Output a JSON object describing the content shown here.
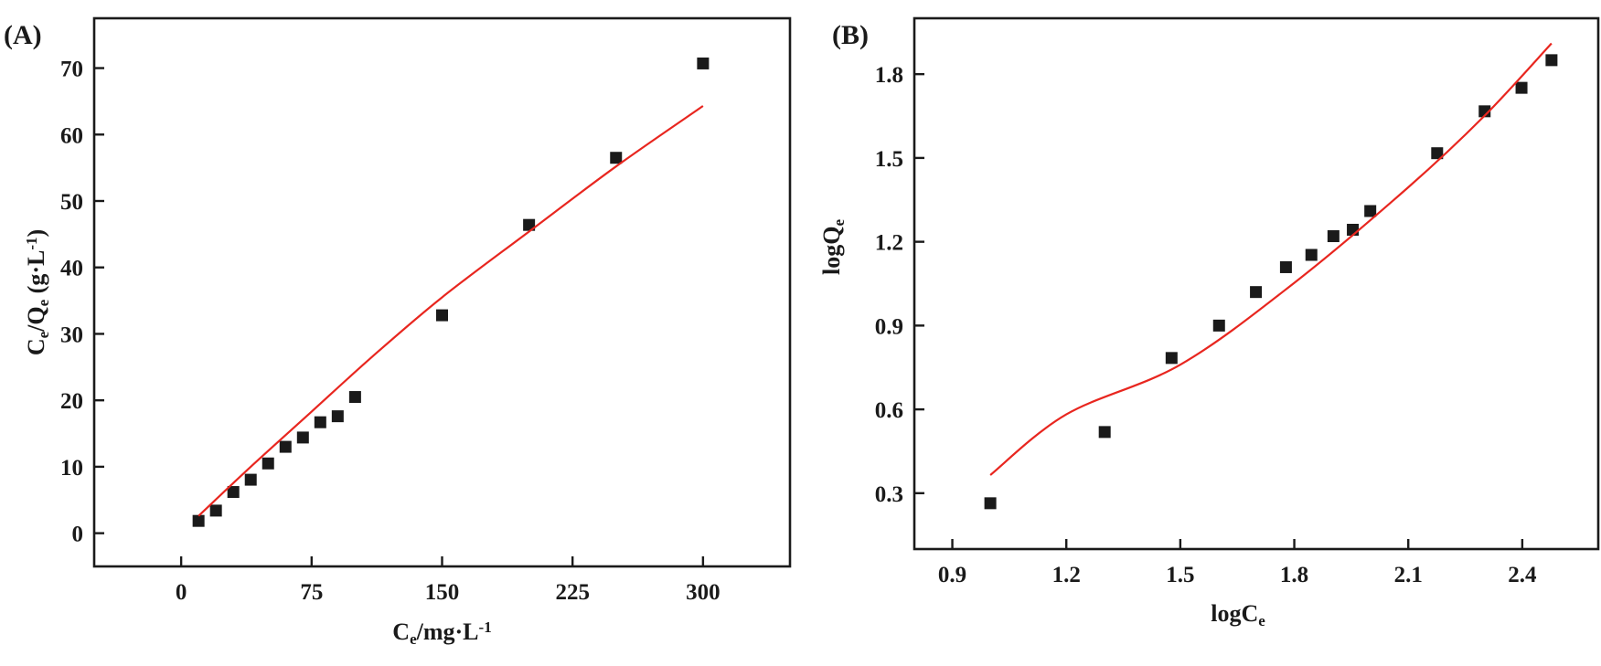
{
  "chart_data": [
    {
      "type": "scatter",
      "panel_label": "(A)",
      "xlabel_parts": [
        {
          "t": "C"
        },
        {
          "t": "e",
          "sub": true
        },
        {
          "t": "/mg·L"
        },
        {
          "t": "-1",
          "sup": true
        }
      ],
      "ylabel_parts": [
        {
          "t": "C"
        },
        {
          "t": "e",
          "sub": true
        },
        {
          "t": "/Q"
        },
        {
          "t": "e",
          "sub": true
        },
        {
          "t": "  (g·L"
        },
        {
          "t": "-1",
          "sup": true
        },
        {
          "t": ")"
        }
      ],
      "xlim": [
        -50,
        350
      ],
      "ylim": [
        -5,
        77.5
      ],
      "xticks": [
        0,
        75,
        150,
        225,
        300
      ],
      "yticks": [
        0,
        10,
        20,
        30,
        40,
        50,
        60,
        70
      ],
      "tick_labels_x": [
        "0",
        "75",
        "150",
        "225",
        "300"
      ],
      "tick_labels_y": [
        "0",
        "10",
        "20",
        "30",
        "40",
        "50",
        "60",
        "70"
      ],
      "grid": false,
      "series": [
        {
          "name": "experimental",
          "kind": "markers",
          "color": "#1a1a1a",
          "x": [
            10,
            20,
            30,
            40,
            50,
            60,
            70,
            80,
            90,
            100,
            150,
            200,
            250,
            300
          ],
          "y": [
            1.85,
            3.4,
            6.2,
            8.05,
            10.5,
            13.0,
            14.4,
            16.7,
            17.6,
            20.5,
            32.8,
            46.4,
            56.5,
            70.7
          ]
        },
        {
          "name": "fit",
          "kind": "line",
          "color": "#e8261f",
          "x": [
            10,
            40,
            75,
            110,
            150,
            200,
            250,
            300
          ],
          "y": [
            2.6,
            10.0,
            18.3,
            26.6,
            35.5,
            45.4,
            55.2,
            64.3
          ]
        }
      ]
    },
    {
      "type": "scatter",
      "panel_label": "(B)",
      "xlabel_parts": [
        {
          "t": "logC"
        },
        {
          "t": "e",
          "sub": true
        }
      ],
      "ylabel_parts": [
        {
          "t": "logQ"
        },
        {
          "t": "e",
          "sub": true
        }
      ],
      "xlim": [
        0.8,
        2.6
      ],
      "ylim": [
        0.1,
        2.0
      ],
      "xticks": [
        0.9,
        1.2,
        1.5,
        1.8,
        2.1,
        2.4
      ],
      "yticks": [
        0.3,
        0.6,
        0.9,
        1.2,
        1.5,
        1.8
      ],
      "tick_labels_x": [
        "0.9",
        "1.2",
        "1.5",
        "1.8",
        "2.1",
        "2.4"
      ],
      "tick_labels_y": [
        "0.3",
        "0.6",
        "0.9",
        "1.2",
        "1.5",
        "1.8"
      ],
      "grid": false,
      "series": [
        {
          "name": "experimental",
          "kind": "markers",
          "color": "#1a1a1a",
          "x": [
            1.0,
            1.301,
            1.477,
            1.602,
            1.699,
            1.778,
            1.845,
            1.903,
            1.954,
            2.0,
            2.176,
            2.301,
            2.398,
            2.477
          ],
          "y": [
            0.264,
            0.519,
            0.784,
            0.9,
            1.02,
            1.109,
            1.153,
            1.22,
            1.243,
            1.31,
            1.517,
            1.667,
            1.751,
            1.85
          ]
        },
        {
          "name": "fit",
          "kind": "line",
          "color": "#e8261f",
          "x": [
            1.0,
            1.2,
            1.5,
            1.8,
            2.1,
            2.3,
            2.477
          ],
          "y": [
            0.365,
            0.582,
            0.76,
            1.053,
            1.395,
            1.65,
            1.91
          ]
        }
      ]
    }
  ]
}
